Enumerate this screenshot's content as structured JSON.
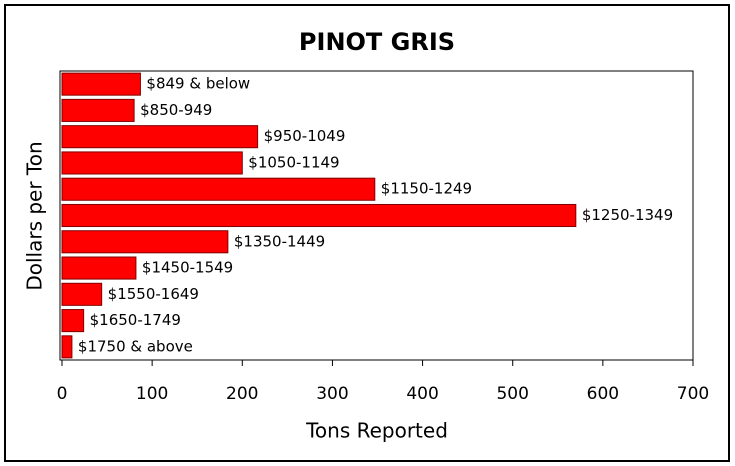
{
  "chart_data": {
    "type": "bar",
    "orientation": "horizontal",
    "title": "PINOT GRIS",
    "x_label": "Tons Reported",
    "y_label": "Dollars per Ton",
    "categories": [
      "$849 & below",
      "$850-949",
      "$950-1049",
      "$1050-1149",
      "$1150-1249",
      "$1250-1349",
      "$1350-1449",
      "$1450-1549",
      "$1550-1649",
      "$1650-1749",
      "$1750 & above"
    ],
    "values": [
      87,
      80,
      217,
      200,
      347,
      570,
      184,
      82,
      44,
      24,
      11
    ],
    "color": "#ff0000",
    "xlim": [
      0,
      700
    ],
    "xticks": [
      0,
      100,
      200,
      300,
      400,
      500,
      600,
      700
    ],
    "grid": false
  }
}
